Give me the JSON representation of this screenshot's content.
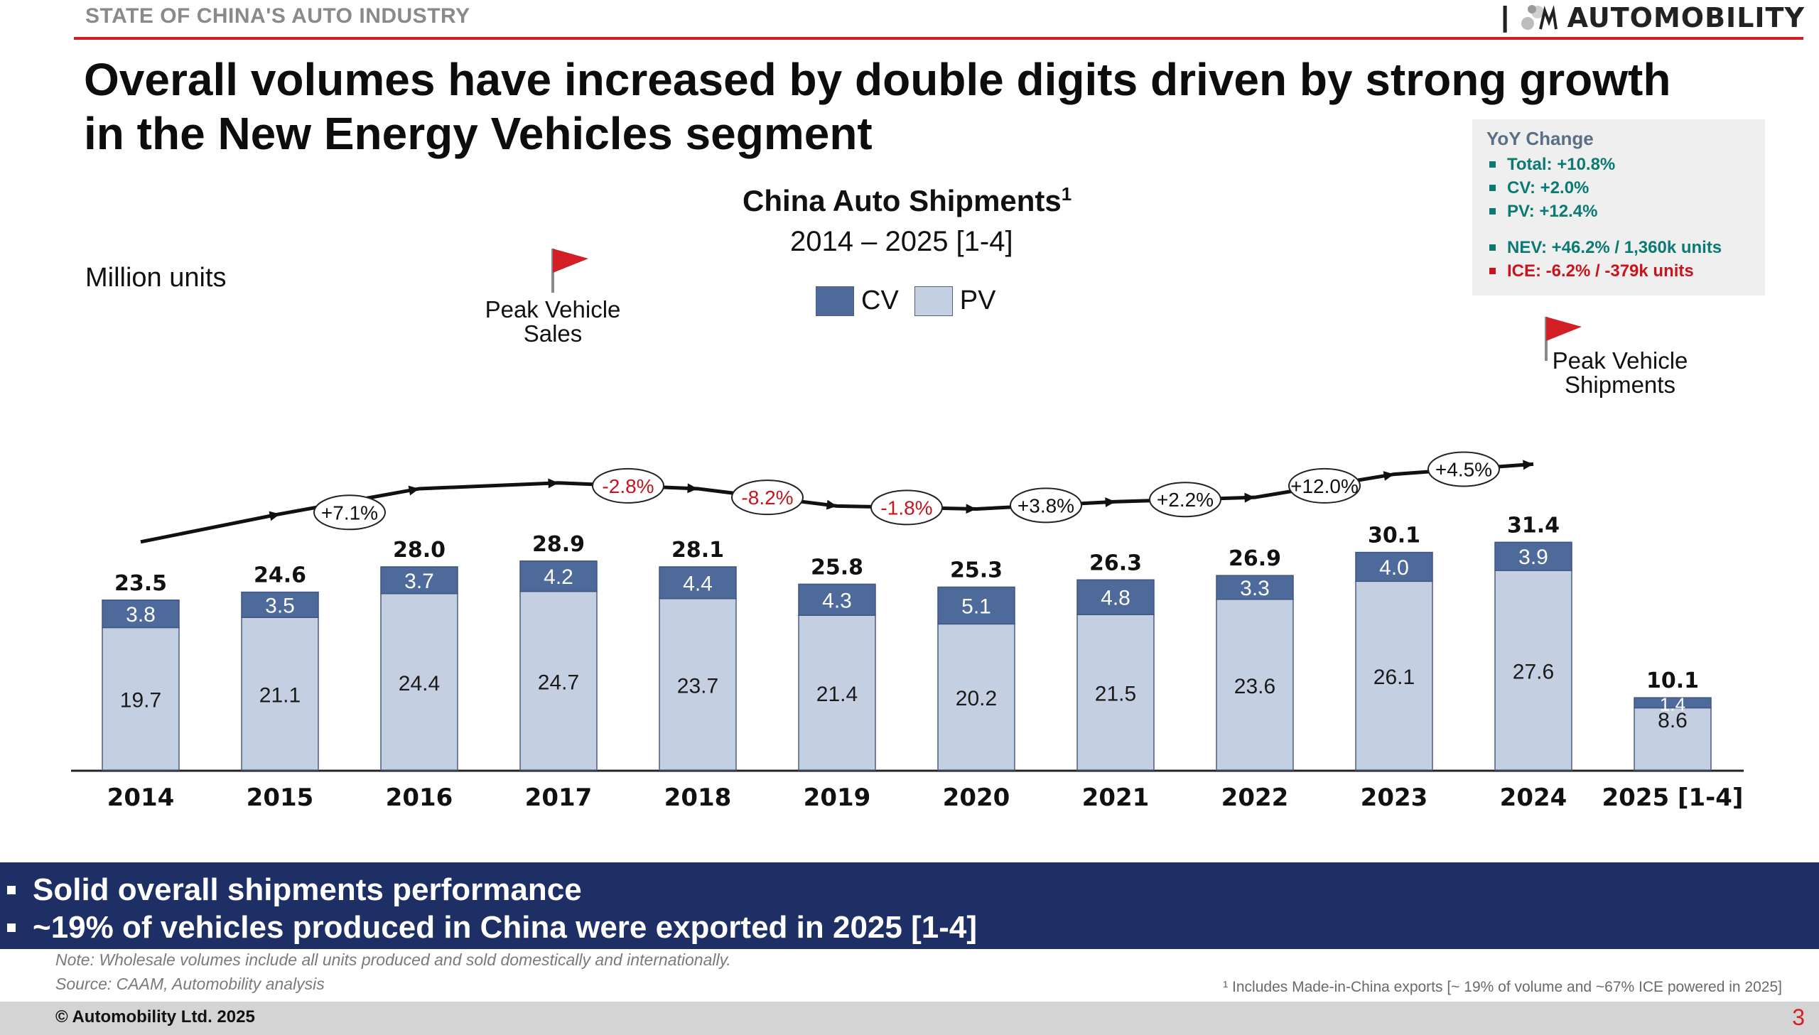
{
  "header": {
    "section": "STATE OF CHINA'S AUTO INDUSTRY",
    "brand_separator": "|",
    "brand": "AUTOMOBILITY"
  },
  "headline": "Overall volumes have increased by double digits driven by strong growth in the New Energy Vehicles segment",
  "colors": {
    "cv": "#4e6a9a",
    "pv": "#c4cfe2",
    "accent_red": "#d21f26",
    "banner": "#1e2f66",
    "teal": "#0a7a72",
    "negative": "#c8151d"
  },
  "yoy_box": {
    "title": "YoY Change",
    "items": [
      "Total: +10.8%",
      "CV: +2.0%",
      "PV: +12.4%"
    ],
    "nev": "NEV: +46.2% / 1,360k units",
    "ice": "ICE: -6.2% /  -379k units"
  },
  "chart_data": {
    "type": "bar",
    "stacked": true,
    "title": "China Auto Shipments",
    "title_sup": "1",
    "subtitle": "2014 –  2025 [1-4]",
    "ylabel": "Million units",
    "categories": [
      "2014",
      "2015",
      "2016",
      "2017",
      "2018",
      "2019",
      "2020",
      "2021",
      "2022",
      "2023",
      "2024",
      "2025 [1-4]"
    ],
    "series": [
      {
        "name": "CV",
        "values": [
          3.8,
          3.5,
          3.7,
          4.2,
          4.4,
          4.3,
          5.1,
          4.8,
          3.3,
          4.0,
          3.9,
          1.4
        ]
      },
      {
        "name": "PV",
        "values": [
          19.7,
          21.1,
          24.4,
          24.7,
          23.7,
          21.4,
          20.2,
          21.5,
          23.6,
          26.1,
          27.6,
          8.6
        ]
      }
    ],
    "totals": [
      "23.5",
      "24.6",
      "28.0",
      "28.9",
      "28.1",
      "25.8",
      "25.3",
      "26.3",
      "26.9",
      "30.1",
      "31.4",
      "10.1"
    ],
    "cv_labels": [
      "3.8",
      "3.5",
      "3.7",
      "4.2",
      "4.4",
      "4.3",
      "5.1",
      "4.8",
      "3.3",
      "4.0",
      "3.9",
      "1.4"
    ],
    "pv_labels": [
      "19.7",
      "21.1",
      "24.4",
      "24.7",
      "23.7",
      "21.4",
      "20.2",
      "21.5",
      "23.6",
      "26.1",
      "27.6",
      "8.6"
    ],
    "growth_labels": [
      "+7.1%",
      "-2.8%",
      "-8.2%",
      "-1.8%",
      "+3.8%",
      "+2.2%",
      "+12.0%",
      "+4.5%"
    ],
    "growth_negative": [
      false,
      true,
      true,
      true,
      false,
      false,
      false,
      false
    ],
    "annotations": {
      "peak_sales": "Peak Vehicle\nSales",
      "peak_shipments": "Peak Vehicle\nShipments"
    },
    "ylim": [
      0,
      35
    ],
    "grid": false,
    "legend_position": "top-center"
  },
  "banner": {
    "items": [
      "Solid overall shipments performance",
      "~19% of vehicles produced in China were exported in 2025 [1-4]"
    ]
  },
  "notes": {
    "note": "Note: Wholesale volumes include all units produced and sold domestically and internationally.",
    "source": "Source: CAAM, Automobility analysis",
    "footnote": "¹ Includes Made-in-China exports [~ 19% of volume and ~67% ICE powered in 2025]"
  },
  "footer": {
    "copyright": "© Automobility Ltd. 2025",
    "page": "3"
  }
}
